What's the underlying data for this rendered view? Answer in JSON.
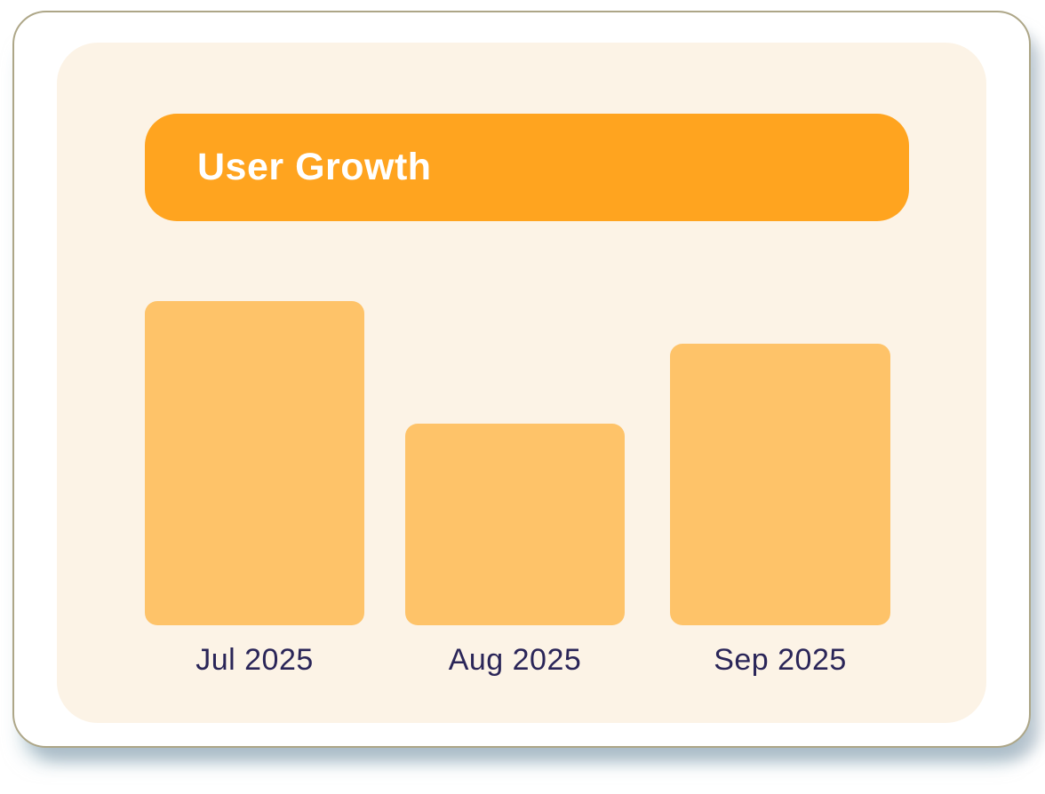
{
  "card": {
    "title": "User Growth"
  },
  "colors": {
    "header_orange": "#FFA41F",
    "bar_orange": "#FEC369",
    "panel_cream": "#FCF3E6",
    "card_white": "#FFFFFF",
    "label_navy": "#2A2558",
    "title_white": "#FFFFFF"
  },
  "chart_data": {
    "type": "bar",
    "title": "User Growth",
    "categories": [
      "Jul 2025",
      "Aug 2025",
      "Sep 2025"
    ],
    "values": [
      365,
      227,
      317
    ],
    "value_units": "relative bar height in px (no y-axis or data labels shown)",
    "xlabel": "",
    "ylabel": "",
    "legend": false,
    "gridlines": false,
    "axes_visible": false,
    "orientation": "vertical"
  }
}
